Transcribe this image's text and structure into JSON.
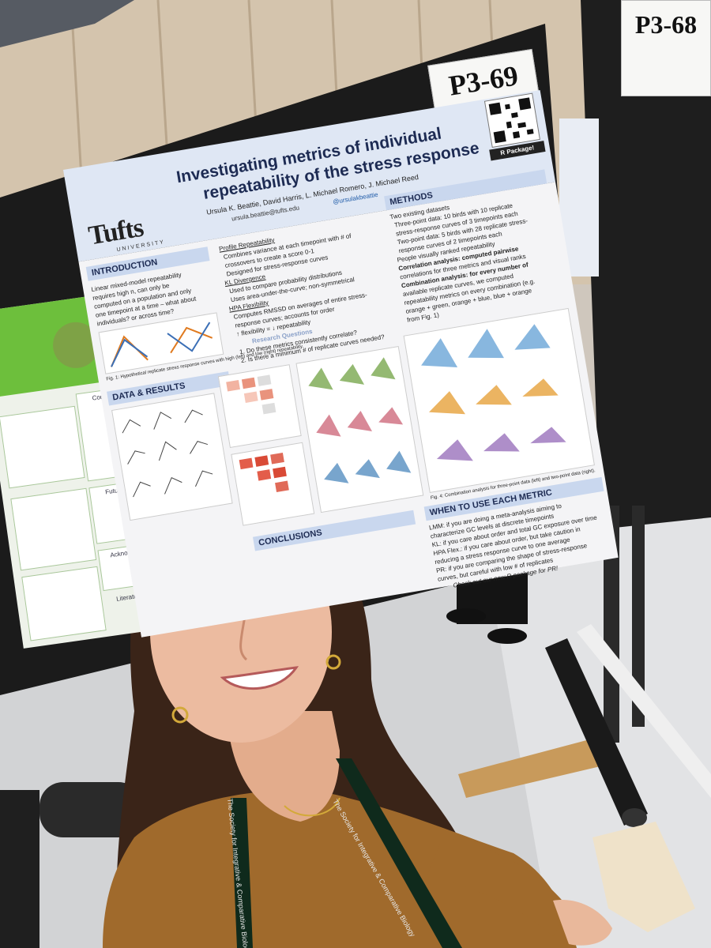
{
  "scene": {
    "description_hidden": false,
    "signs": {
      "left_board": "P3-69",
      "right_board": "P3-68"
    }
  },
  "poster": {
    "title_line_1": "Investigating metrics of individual",
    "title_line_2": "repeatability of the stress response",
    "authors": "Ursula K. Beattie, David Harris, L. Michael Romero, J. Michael Reed",
    "email": "ursula.beattie@tufts.edu",
    "handle": "@ursulakbeattie",
    "logo": "Tufts",
    "logo_sub": "UNIVERSITY",
    "qr_label": "R Package!",
    "sections": {
      "introduction": "INTRODUCTION",
      "methods": "METHODS",
      "data_results": "DATA & RESULTS",
      "when_to_use": "WHEN TO USE EACH METRIC",
      "conclusions": "CONCLUSIONS"
    },
    "intro_lines": [
      "Linear mixed-model repeatability",
      "requires high n, can only be",
      "computed on a population and only",
      "one timepoint at a time – what about",
      "individuals? or across time?"
    ],
    "metrics_lines": [
      "Profile Repeatability",
      "Combines variance at each timepoint with # of",
      "crossovers to create a score 0-1",
      "Designed for stress-response curves",
      "KL Divergence",
      "Used to compare probability distributions",
      "Uses area-under-the-curve; non-symmetrical",
      "HPA Flexibility",
      "Computes RMSSD on averages of entire stress-",
      "response curves; accounts for order",
      "↑ flexibility = ↓ repeatability",
      "Research Questions",
      "1. Do these metrics consistently correlate?",
      "2. Is there a minimum # of replicate curves needed?"
    ],
    "methods_lines": [
      "Two existing datasets",
      "Three-point data: 10 birds with 10 replicate",
      "stress-response curves of 3 timepoints each",
      "Two-point data: 5 birds with 28 replicate stress-",
      "response curves of 2 timepoints each",
      "People visually ranked repeatability",
      "Correlation analysis: computed pairwise",
      "correlations for three metrics and visual ranks",
      "Combination analysis: for every number of",
      "available replicate curves, we computed",
      "repeatability metrics on every combination (e.g.",
      "orange + green, orange + blue, blue + orange",
      "from Fig. 1)"
    ],
    "when_lines": [
      "LMM: if you are doing a meta-analysis aiming to",
      "characterize GC levels at discrete timepoints",
      "KL: if you care about order and total GC exposure over time",
      "HPA Flex.: if you care about order, but take caution in",
      "reducing a stress response curve to one average",
      "PR: if you are comparing the shape of stress-response",
      "curves, but careful with low # of replicates",
      "Check out our new R package for PR!"
    ],
    "fig1_caption": "Fig. 1: Hypothetical replicate stress response curves with high (left) and low (right) repeatability.",
    "fig4_caption": "Fig. 4: Combination analysis for three-point data (left) and two-point data (right)."
  },
  "green_poster": {
    "headings": [
      "Conclusions",
      "Future Studies",
      "Acknowledgements",
      "Literature Cited"
    ]
  },
  "lanyard": {
    "text": "The Society for Integrative & Comparative Biology"
  },
  "colors": {
    "poster_header": "#dfe7f4",
    "section_head": "#c9d7ee",
    "title": "#1d2b53",
    "green_band": "#6dbf3c",
    "shirt": "#a06a2c",
    "hair": "#3a2418",
    "board": "#1b1b1b"
  }
}
